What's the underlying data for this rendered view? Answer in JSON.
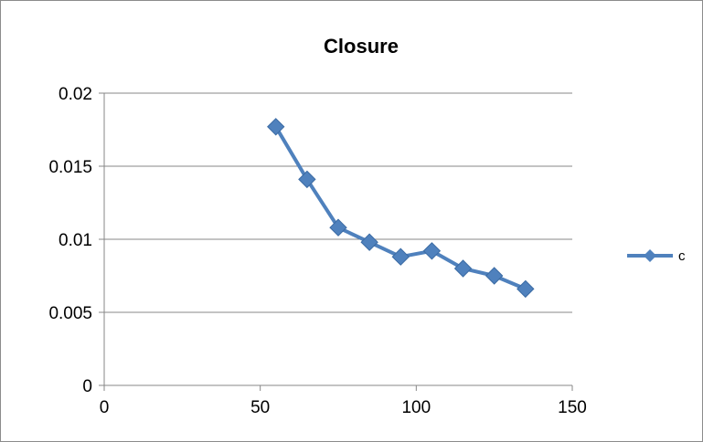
{
  "chart_data": {
    "type": "line",
    "title": "Closure",
    "xlabel": "",
    "ylabel": "",
    "xlim": [
      0,
      150
    ],
    "ylim": [
      0,
      0.02
    ],
    "x_ticks": [
      0,
      50,
      100,
      150
    ],
    "y_ticks": [
      0,
      0.005,
      0.01,
      0.015,
      0.02
    ],
    "x_tick_labels": [
      "0",
      "50",
      "100",
      "150"
    ],
    "y_tick_labels": [
      "0",
      "0.005",
      "0.01",
      "0.015",
      "0.02"
    ],
    "grid": "horizontal",
    "legend_position": "right",
    "series": [
      {
        "name": "c",
        "color": "#4f81bd",
        "marker": "diamond",
        "x": [
          55,
          65,
          75,
          85,
          95,
          105,
          115,
          125,
          135
        ],
        "y": [
          0.0177,
          0.0141,
          0.0108,
          0.0098,
          0.0088,
          0.0092,
          0.008,
          0.0075,
          0.0066
        ]
      }
    ]
  }
}
